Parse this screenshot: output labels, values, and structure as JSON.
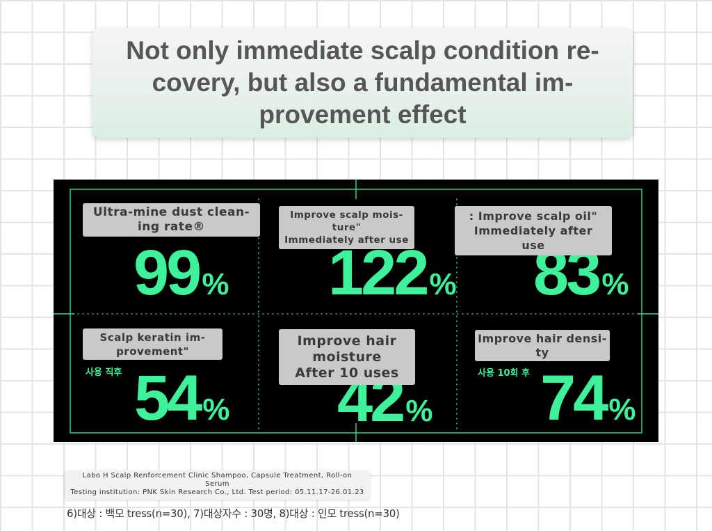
{
  "headline": {
    "text": "Not only immediate scalp condition re-\ncovery, but also a fundamental im-\nprovement effect"
  },
  "stats": [
    {
      "label": "Ultra-mine dust clean-\ning rate®",
      "value": "99",
      "unit": "%",
      "tag": ""
    },
    {
      "label": "Improve scalp mois-\nture\"\nImmediately after use",
      "value": "122",
      "unit": "%",
      "tag": ""
    },
    {
      "label": ": Improve scalp oil\"\nImmediately after\nuse",
      "value": "83",
      "unit": "%",
      "tag": ""
    },
    {
      "label": "Scalp keratin im-\nprovement\"",
      "value": "54",
      "unit": "%",
      "tag": "사용 직후"
    },
    {
      "label": "Improve hair\nmoisture\nAfter 10 uses",
      "value": "42",
      "unit": "%",
      "tag": ""
    },
    {
      "label": "Improve hair densi-\nty",
      "value": "74",
      "unit": "%",
      "tag": "사용 10회 후"
    }
  ],
  "footnote": {
    "line1": "Labo H Scalp Renforcement Clinic Shampoo, Capsule Treatment, Roll-on",
    "line2": "Serum",
    "line3": "Testing institution: PNK Skin Research Co., Ltd. Test period: 05.11.17-26.01.23",
    "korean": "6)대상 : 백모 tress(n=30), 7)대상자수 : 30명, 8)대상 : 인모 tress(n=30)"
  },
  "colors": {
    "accent": "#3ef29c",
    "panel_background": "#000000",
    "frame_line": "#2dd08a",
    "label_background": "#c9c9c9"
  }
}
